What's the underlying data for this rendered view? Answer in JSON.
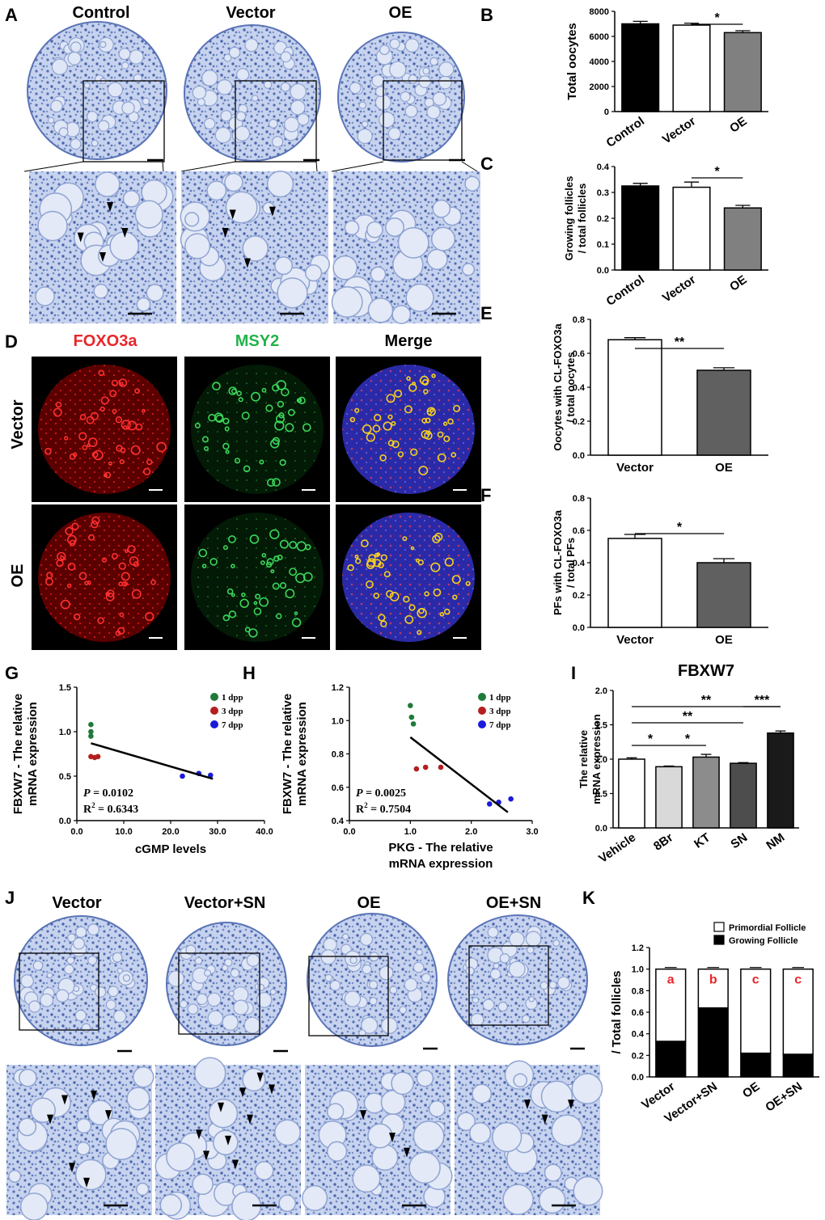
{
  "panel_labels": [
    "A",
    "B",
    "C",
    "D",
    "E",
    "F",
    "G",
    "H",
    "I",
    "J",
    "K"
  ],
  "panel_a": {
    "headers": [
      "Control",
      "Vector",
      "OE"
    ]
  },
  "panel_d": {
    "channel_headers": [
      "FOXO3a",
      "MSY2",
      "Merge"
    ],
    "row_labels": [
      "Vector",
      "OE"
    ],
    "colors": {
      "foxo3a": "#e8262a",
      "msy2": "#23b24b"
    }
  },
  "panel_j": {
    "headers": [
      "Vector",
      "Vector+SN",
      "OE",
      "OE+SN"
    ]
  },
  "stain_color": "#4f6fb8",
  "chart_data": [
    {
      "panel": "B",
      "type": "bar",
      "categories": [
        "Control",
        "Vector",
        "OE"
      ],
      "values": [
        7000,
        6900,
        6300
      ],
      "errors": [
        200,
        150,
        150
      ],
      "bar_colors": [
        "#000000",
        "#ffffff",
        "#808080"
      ],
      "ylabel": "Total oocytes",
      "ylim": [
        0,
        8000
      ],
      "yticks": [
        "0",
        "2000",
        "4000",
        "6000",
        "8000"
      ],
      "significance": [
        {
          "between": [
            1,
            2
          ],
          "label": "*"
        }
      ]
    },
    {
      "panel": "C",
      "type": "bar",
      "categories": [
        "Control",
        "Vector",
        "OE"
      ],
      "values": [
        0.325,
        0.32,
        0.24
      ],
      "errors": [
        0.01,
        0.02,
        0.01
      ],
      "bar_colors": [
        "#000000",
        "#ffffff",
        "#808080"
      ],
      "ylabel_lines": [
        "Growing follicles",
        "/ total follicles"
      ],
      "ylim": [
        0,
        0.4
      ],
      "yticks": [
        "0.0",
        "0.1",
        "0.2",
        "0.3",
        "0.4"
      ],
      "significance": [
        {
          "between": [
            1,
            2
          ],
          "label": "*"
        }
      ]
    },
    {
      "panel": "E",
      "type": "bar",
      "categories": [
        "Vector",
        "OE"
      ],
      "values": [
        0.68,
        0.5
      ],
      "errors": [
        0.012,
        0.015
      ],
      "bar_colors": [
        "#ffffff",
        "#606060"
      ],
      "ylabel_lines": [
        "Oocytes with CL-FOXO3a",
        "/ total oocytes"
      ],
      "ylim": [
        0,
        0.8
      ],
      "yticks": [
        "0.0",
        "0.2",
        "0.4",
        "0.6",
        "0.8"
      ],
      "significance": [
        {
          "between": [
            0,
            1
          ],
          "label": "**"
        }
      ]
    },
    {
      "panel": "F",
      "type": "bar",
      "categories": [
        "Vector",
        "OE"
      ],
      "values": [
        0.55,
        0.4
      ],
      "errors": [
        0.025,
        0.025
      ],
      "bar_colors": [
        "#ffffff",
        "#606060"
      ],
      "ylabel_lines": [
        "PFs with CL-FOXO3a",
        "/ total PFs"
      ],
      "ylim": [
        0,
        0.8
      ],
      "yticks": [
        "0.0",
        "0.2",
        "0.4",
        "0.6",
        "0.8"
      ],
      "significance": [
        {
          "between": [
            0,
            1
          ],
          "label": "*"
        }
      ]
    },
    {
      "panel": "G",
      "type": "scatter",
      "series": [
        {
          "name": "1 dpp",
          "color": "#1f7a3a",
          "x": [
            3,
            3,
            3
          ],
          "y": [
            1.08,
            1.0,
            0.95
          ]
        },
        {
          "name": "3 dpp",
          "color": "#b41e1e",
          "x": [
            3,
            3.8,
            4.5
          ],
          "y": [
            0.72,
            0.71,
            0.72
          ]
        },
        {
          "name": "7 dpp",
          "color": "#1a1ad8",
          "x": [
            22.5,
            26,
            28.5
          ],
          "y": [
            0.5,
            0.53,
            0.51
          ]
        }
      ],
      "fit": {
        "x": [
          3,
          29
        ],
        "y": [
          0.87,
          0.47
        ]
      },
      "stats": {
        "p_label": "P",
        "p_value": "= 0.0102",
        "r2_label": "R",
        "r2_value": "= 0.6343"
      },
      "xlabel": "cGMP levels",
      "ylabel_lines": [
        "FBXW7 - The relative",
        "mRNA expression"
      ],
      "xlim": [
        0,
        40
      ],
      "ylim": [
        0.0,
        1.5
      ],
      "xticks": [
        "0.0",
        "10.0",
        "20.0",
        "30.0",
        "40.0"
      ],
      "yticks": [
        "0.0",
        "0.5",
        "1.0",
        "1.5"
      ]
    },
    {
      "panel": "H",
      "type": "scatter",
      "series": [
        {
          "name": "1 dpp",
          "color": "#1f7a3a",
          "x": [
            1.0,
            1.02,
            1.05
          ],
          "y": [
            1.09,
            1.02,
            0.98
          ]
        },
        {
          "name": "3 dpp",
          "color": "#b41e1e",
          "x": [
            1.1,
            1.25,
            1.5
          ],
          "y": [
            0.71,
            0.72,
            0.72
          ]
        },
        {
          "name": "7 dpp",
          "color": "#1a1ad8",
          "x": [
            2.3,
            2.45,
            2.65
          ],
          "y": [
            0.5,
            0.51,
            0.53
          ]
        }
      ],
      "fit": {
        "x": [
          1.0,
          2.6
        ],
        "y": [
          0.9,
          0.45
        ]
      },
      "stats": {
        "p_label": "P",
        "p_value": "= 0.0025",
        "r2_label": "R",
        "r2_value": "= 0.7504"
      },
      "xlabel_lines": [
        "PKG - The relative",
        "mRNA expression"
      ],
      "ylabel_lines": [
        "FBXW7 - The relative",
        "mRNA expression"
      ],
      "xlim": [
        0,
        3
      ],
      "ylim": [
        0.4,
        1.2
      ],
      "xticks": [
        "0.0",
        "1.0",
        "2.0",
        "3.0"
      ],
      "yticks": [
        "0.4",
        "0.6",
        "0.8",
        "1.0",
        "1.2"
      ]
    },
    {
      "panel": "I",
      "type": "bar",
      "title": "FBXW7",
      "categories": [
        "Vehicle",
        "8Br",
        "KT",
        "SN",
        "NM"
      ],
      "values": [
        1.0,
        0.89,
        1.03,
        0.94,
        1.38
      ],
      "errors": [
        0.02,
        0.01,
        0.04,
        0.01,
        0.03
      ],
      "bar_colors": [
        "#ffffff",
        "#d9d9d9",
        "#8c8c8c",
        "#4d4d4d",
        "#1a1a1a"
      ],
      "ylabel_lines": [
        "The relative",
        "mRNA expression"
      ],
      "ylim": [
        0,
        2.0
      ],
      "yticks": [
        "0.0",
        "0.5",
        "1.0",
        "1.5",
        "2.0"
      ],
      "significance": [
        {
          "between": [
            0,
            1
          ],
          "label": "*"
        },
        {
          "between": [
            1,
            2
          ],
          "label": "*"
        },
        {
          "between": [
            3,
            4
          ],
          "label": "***"
        },
        {
          "between": [
            0,
            3
          ],
          "label": "**"
        },
        {
          "between": [
            0,
            4
          ],
          "label": "**"
        }
      ]
    },
    {
      "panel": "K",
      "type": "bar",
      "stacked": true,
      "categories": [
        "Vector",
        "Vector+SN",
        "OE",
        "OE+SN"
      ],
      "series": [
        {
          "name": "Growing Follicle",
          "color": "#000000",
          "values": [
            0.33,
            0.64,
            0.22,
            0.21
          ],
          "letters": [
            "a",
            "b",
            "c",
            "c"
          ]
        },
        {
          "name": "Primordial Follicle",
          "color": "#ffffff",
          "values": [
            0.67,
            0.36,
            0.78,
            0.79
          ],
          "letters": [
            "a",
            "b",
            "c",
            "c"
          ]
        }
      ],
      "ylabel": "/ Total follicles",
      "ylim": [
        0,
        1.2
      ],
      "yticks": [
        "0.0",
        "0.2",
        "0.4",
        "0.6",
        "0.8",
        "1.0",
        "1.2"
      ]
    }
  ]
}
